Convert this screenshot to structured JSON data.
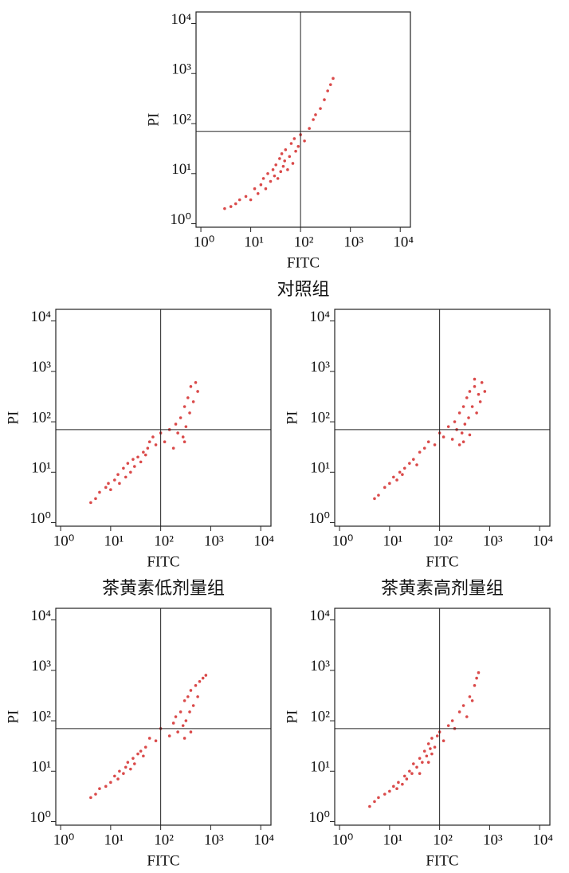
{
  "chart_data": [
    {
      "type": "scatter",
      "title": "对照组",
      "xlabel": "FITC",
      "ylabel": "PI",
      "color": "#d42a2a",
      "log_x": true,
      "log_y": true,
      "quadrant_x": 100,
      "quadrant_y": 70,
      "xlim": [
        0.8,
        16000
      ],
      "ylim": [
        0.85,
        17000
      ],
      "xticks": [
        {
          "value": 1,
          "label": "10⁰"
        },
        {
          "value": 10,
          "label": "10¹"
        },
        {
          "value": 100,
          "label": "10²"
        },
        {
          "value": 1000,
          "label": "10³"
        },
        {
          "value": 10000,
          "label": "10⁴"
        }
      ],
      "yticks": [
        {
          "value": 1,
          "label": "10⁰"
        },
        {
          "value": 10,
          "label": "10¹"
        },
        {
          "value": 100,
          "label": "10²"
        },
        {
          "value": 1000,
          "label": "10³"
        },
        {
          "value": 10000,
          "label": "10⁴"
        }
      ],
      "x": [
        3,
        4,
        5,
        6,
        8,
        10,
        12,
        14,
        16,
        18,
        20,
        22,
        25,
        28,
        30,
        32,
        35,
        38,
        40,
        42,
        45,
        48,
        50,
        55,
        60,
        65,
        70,
        75,
        80,
        90,
        100,
        120,
        150,
        180,
        200,
        250,
        300,
        350,
        400,
        450
      ],
      "y": [
        2,
        2.2,
        2.5,
        3,
        3.5,
        3,
        5,
        4,
        6,
        8,
        5,
        10,
        7,
        12,
        9,
        15,
        8,
        20,
        11,
        25,
        14,
        18,
        30,
        12,
        22,
        40,
        16,
        50,
        28,
        35,
        60,
        45,
        80,
        120,
        150,
        200,
        300,
        450,
        600,
        800
      ]
    },
    {
      "type": "scatter",
      "title": "茶黄素低剂量组",
      "xlabel": "FITC",
      "ylabel": "PI",
      "color": "#d42a2a",
      "log_x": true,
      "log_y": true,
      "quadrant_x": 100,
      "quadrant_y": 70,
      "xlim": [
        0.8,
        16000
      ],
      "ylim": [
        0.85,
        17000
      ],
      "xticks": [
        {
          "value": 1,
          "label": "10⁰"
        },
        {
          "value": 10,
          "label": "10¹"
        },
        {
          "value": 100,
          "label": "10²"
        },
        {
          "value": 1000,
          "label": "10³"
        },
        {
          "value": 10000,
          "label": "10⁴"
        }
      ],
      "yticks": [
        {
          "value": 1,
          "label": "10⁰"
        },
        {
          "value": 10,
          "label": "10¹"
        },
        {
          "value": 100,
          "label": "10²"
        },
        {
          "value": 1000,
          "label": "10³"
        },
        {
          "value": 10000,
          "label": "10⁴"
        }
      ],
      "x": [
        4,
        5,
        6,
        8,
        9,
        10,
        12,
        14,
        15,
        18,
        20,
        22,
        25,
        28,
        30,
        35,
        40,
        45,
        50,
        55,
        60,
        70,
        80,
        100,
        120,
        150,
        180,
        200,
        220,
        250,
        280,
        300,
        320,
        350,
        380,
        400,
        450,
        500,
        550,
        300
      ],
      "y": [
        2.5,
        3,
        4,
        5,
        6,
        4.5,
        7,
        9,
        6,
        12,
        8,
        15,
        10,
        18,
        13,
        20,
        16,
        25,
        22,
        30,
        40,
        50,
        35,
        60,
        40,
        70,
        30,
        90,
        60,
        120,
        50,
        200,
        80,
        300,
        150,
        500,
        250,
        600,
        400,
        40
      ]
    },
    {
      "type": "scatter",
      "title": "茶黄素高剂量组",
      "xlabel": "FITC",
      "ylabel": "PI",
      "color": "#d42a2a",
      "log_x": true,
      "log_y": true,
      "quadrant_x": 100,
      "quadrant_y": 70,
      "xlim": [
        0.8,
        16000
      ],
      "ylim": [
        0.85,
        17000
      ],
      "xticks": [
        {
          "value": 1,
          "label": "10⁰"
        },
        {
          "value": 10,
          "label": "10¹"
        },
        {
          "value": 100,
          "label": "10²"
        },
        {
          "value": 1000,
          "label": "10³"
        },
        {
          "value": 10000,
          "label": "10⁴"
        }
      ],
      "yticks": [
        {
          "value": 1,
          "label": "10⁰"
        },
        {
          "value": 10,
          "label": "10¹"
        },
        {
          "value": 100,
          "label": "10²"
        },
        {
          "value": 1000,
          "label": "10³"
        },
        {
          "value": 10000,
          "label": "10⁴"
        }
      ],
      "x": [
        5,
        6,
        8,
        10,
        12,
        14,
        16,
        18,
        20,
        25,
        30,
        35,
        40,
        50,
        60,
        80,
        100,
        120,
        150,
        180,
        200,
        220,
        250,
        280,
        300,
        320,
        350,
        380,
        400,
        450,
        500,
        550,
        600,
        650,
        700,
        800,
        300,
        400,
        250,
        500
      ],
      "y": [
        3,
        3.5,
        5,
        6,
        8,
        7,
        10,
        9,
        12,
        15,
        18,
        14,
        25,
        30,
        40,
        35,
        60,
        50,
        80,
        45,
        100,
        70,
        150,
        60,
        200,
        90,
        300,
        120,
        400,
        200,
        500,
        150,
        350,
        250,
        600,
        400,
        40,
        55,
        35,
        700
      ]
    },
    {
      "type": "scatter",
      "xlabel": "FITC",
      "ylabel": "PI",
      "color": "#d42a2a",
      "log_x": true,
      "log_y": true,
      "quadrant_x": 100,
      "quadrant_y": 70,
      "xlim": [
        0.8,
        16000
      ],
      "ylim": [
        0.85,
        17000
      ],
      "xticks": [
        {
          "value": 1,
          "label": "10⁰"
        },
        {
          "value": 10,
          "label": "10¹"
        },
        {
          "value": 100,
          "label": "10²"
        },
        {
          "value": 1000,
          "label": "10³"
        },
        {
          "value": 10000,
          "label": "10⁴"
        }
      ],
      "yticks": [
        {
          "value": 1,
          "label": "10⁰"
        },
        {
          "value": 10,
          "label": "10¹"
        },
        {
          "value": 100,
          "label": "10²"
        },
        {
          "value": 1000,
          "label": "10³"
        },
        {
          "value": 10000,
          "label": "10⁴"
        }
      ],
      "x": [
        4,
        5,
        6,
        8,
        10,
        12,
        14,
        15,
        18,
        20,
        22,
        25,
        28,
        30,
        35,
        40,
        45,
        50,
        60,
        80,
        100,
        150,
        180,
        200,
        220,
        250,
        280,
        300,
        320,
        350,
        380,
        400,
        450,
        500,
        550,
        600,
        700,
        800,
        300,
        400
      ],
      "y": [
        3,
        3.5,
        4.5,
        5,
        6,
        8,
        7,
        10,
        9,
        12,
        15,
        11,
        18,
        14,
        22,
        25,
        20,
        30,
        45,
        40,
        70,
        50,
        90,
        120,
        60,
        150,
        80,
        250,
        100,
        300,
        150,
        400,
        200,
        500,
        300,
        600,
        700,
        800,
        45,
        60
      ]
    },
    {
      "type": "scatter",
      "xlabel": "FITC",
      "ylabel": "PI",
      "color": "#d42a2a",
      "log_x": true,
      "log_y": true,
      "quadrant_x": 100,
      "quadrant_y": 70,
      "xlim": [
        0.8,
        16000
      ],
      "ylim": [
        0.85,
        17000
      ],
      "xticks": [
        {
          "value": 1,
          "label": "10⁰"
        },
        {
          "value": 10,
          "label": "10¹"
        },
        {
          "value": 100,
          "label": "10²"
        },
        {
          "value": 1000,
          "label": "10³"
        },
        {
          "value": 10000,
          "label": "10⁴"
        }
      ],
      "yticks": [
        {
          "value": 1,
          "label": "10⁰"
        },
        {
          "value": 10,
          "label": "10¹"
        },
        {
          "value": 100,
          "label": "10²"
        },
        {
          "value": 1000,
          "label": "10³"
        },
        {
          "value": 10000,
          "label": "10⁴"
        }
      ],
      "x": [
        4,
        5,
        6,
        8,
        10,
        12,
        14,
        15,
        18,
        20,
        22,
        25,
        28,
        30,
        35,
        40,
        45,
        50,
        55,
        60,
        65,
        70,
        80,
        90,
        100,
        120,
        150,
        180,
        200,
        250,
        300,
        350,
        400,
        450,
        500,
        550,
        600,
        60,
        40,
        70
      ],
      "y": [
        2,
        2.5,
        3,
        3.5,
        4,
        5,
        4.5,
        6,
        5.5,
        8,
        7,
        10,
        9,
        14,
        12,
        18,
        15,
        25,
        20,
        35,
        28,
        45,
        30,
        50,
        60,
        40,
        80,
        100,
        70,
        150,
        200,
        120,
        300,
        250,
        500,
        700,
        900,
        15,
        9,
        22
      ]
    }
  ]
}
